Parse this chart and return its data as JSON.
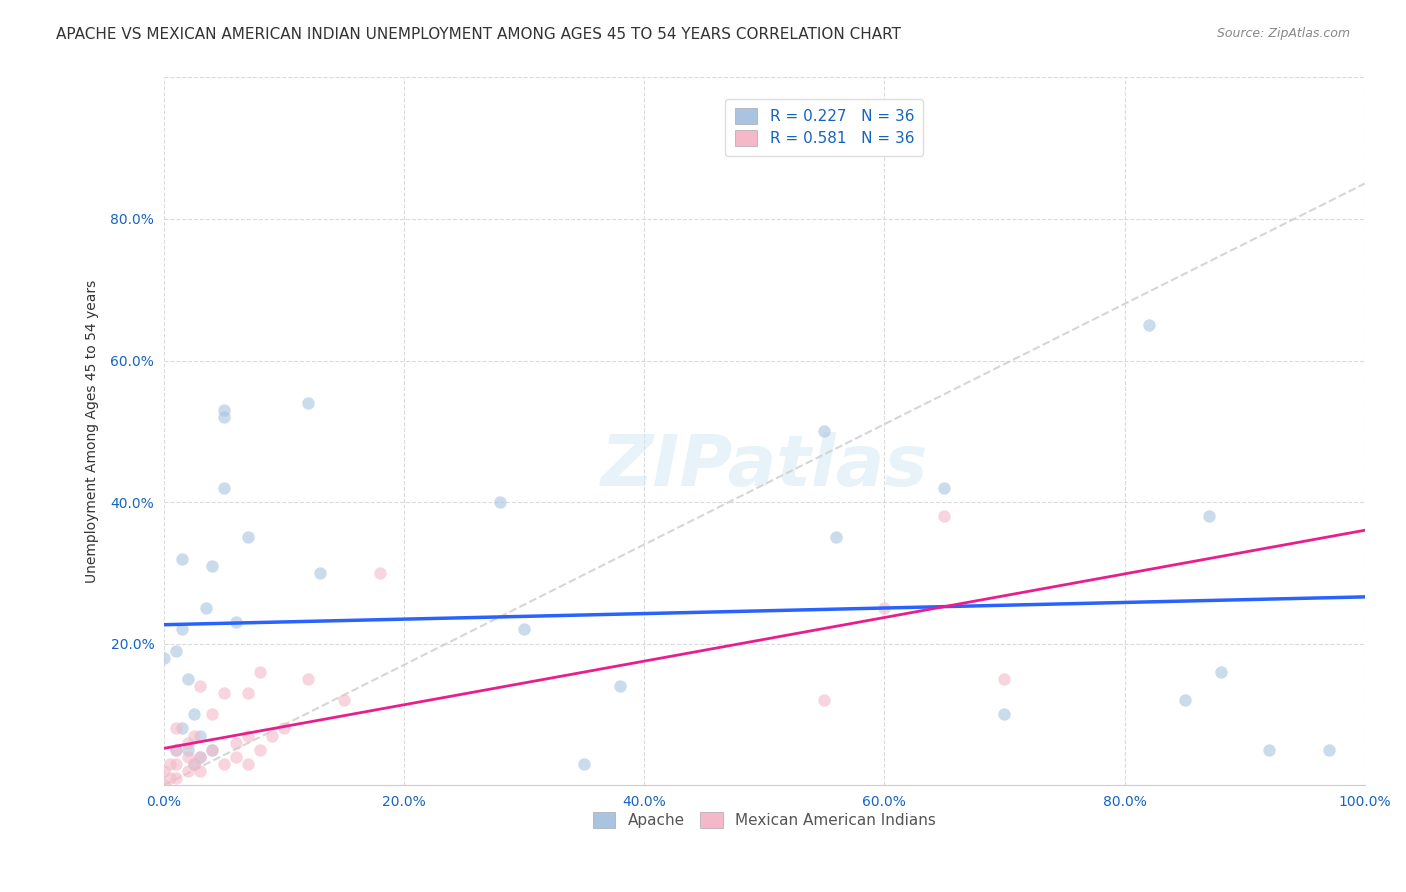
{
  "title": "APACHE VS MEXICAN AMERICAN INDIAN UNEMPLOYMENT AMONG AGES 45 TO 54 YEARS CORRELATION CHART",
  "source": "Source: ZipAtlas.com",
  "xlabel": "",
  "ylabel": "Unemployment Among Ages 45 to 54 years",
  "xlim": [
    0,
    1.0
  ],
  "ylim": [
    0,
    1.0
  ],
  "xticks": [
    0.0,
    0.2,
    0.4,
    0.6,
    0.8,
    1.0
  ],
  "yticks": [
    0.0,
    0.2,
    0.4,
    0.6,
    0.8,
    1.0
  ],
  "xticklabels": [
    "0.0%",
    "20.0%",
    "40.0%",
    "60.0%",
    "80.0%",
    "100.0%"
  ],
  "yticklabels": [
    "",
    "20.0%",
    "40.0%",
    "60.0%",
    "80.0%",
    ""
  ],
  "watermark": "ZIPatlas",
  "background_color": "#ffffff",
  "apache_color": "#a8c4e0",
  "apache_line_color": "#2962ff",
  "mexican_color": "#f4b8c8",
  "mexican_line_color": "#e91e8c",
  "grid_color": "#cccccc",
  "legend_r_color": "#1565c0",
  "apache_R": 0.227,
  "apache_N": 36,
  "mexican_R": 0.581,
  "mexican_N": 36,
  "apache_legend_label": "Apache",
  "mexican_legend_label": "Mexican American Indians",
  "apache_x": [
    0.0,
    0.01,
    0.01,
    0.015,
    0.015,
    0.015,
    0.02,
    0.02,
    0.025,
    0.025,
    0.03,
    0.03,
    0.035,
    0.04,
    0.04,
    0.05,
    0.05,
    0.05,
    0.06,
    0.07,
    0.12,
    0.13,
    0.28,
    0.3,
    0.35,
    0.38,
    0.55,
    0.56,
    0.65,
    0.7,
    0.82,
    0.85,
    0.87,
    0.88,
    0.92,
    0.97
  ],
  "apache_y": [
    0.18,
    0.19,
    0.05,
    0.08,
    0.22,
    0.32,
    0.05,
    0.15,
    0.03,
    0.1,
    0.04,
    0.07,
    0.25,
    0.31,
    0.05,
    0.52,
    0.53,
    0.42,
    0.23,
    0.35,
    0.54,
    0.3,
    0.4,
    0.22,
    0.03,
    0.14,
    0.5,
    0.35,
    0.42,
    0.1,
    0.65,
    0.12,
    0.38,
    0.16,
    0.05,
    0.05
  ],
  "mexican_x": [
    0.0,
    0.0,
    0.005,
    0.005,
    0.01,
    0.01,
    0.01,
    0.01,
    0.02,
    0.02,
    0.02,
    0.025,
    0.025,
    0.03,
    0.03,
    0.03,
    0.04,
    0.04,
    0.05,
    0.05,
    0.06,
    0.06,
    0.07,
    0.07,
    0.07,
    0.08,
    0.08,
    0.09,
    0.1,
    0.12,
    0.15,
    0.18,
    0.55,
    0.6,
    0.65,
    0.7
  ],
  "mexican_y": [
    0.0,
    0.02,
    0.01,
    0.03,
    0.01,
    0.03,
    0.05,
    0.08,
    0.02,
    0.04,
    0.06,
    0.03,
    0.07,
    0.02,
    0.04,
    0.14,
    0.05,
    0.1,
    0.03,
    0.13,
    0.04,
    0.06,
    0.03,
    0.07,
    0.13,
    0.05,
    0.16,
    0.07,
    0.08,
    0.15,
    0.12,
    0.3,
    0.12,
    0.25,
    0.38,
    0.15
  ],
  "marker_size": 80,
  "marker_alpha": 0.6,
  "title_fontsize": 11,
  "axis_label_fontsize": 10,
  "tick_fontsize": 10,
  "legend_fontsize": 11
}
